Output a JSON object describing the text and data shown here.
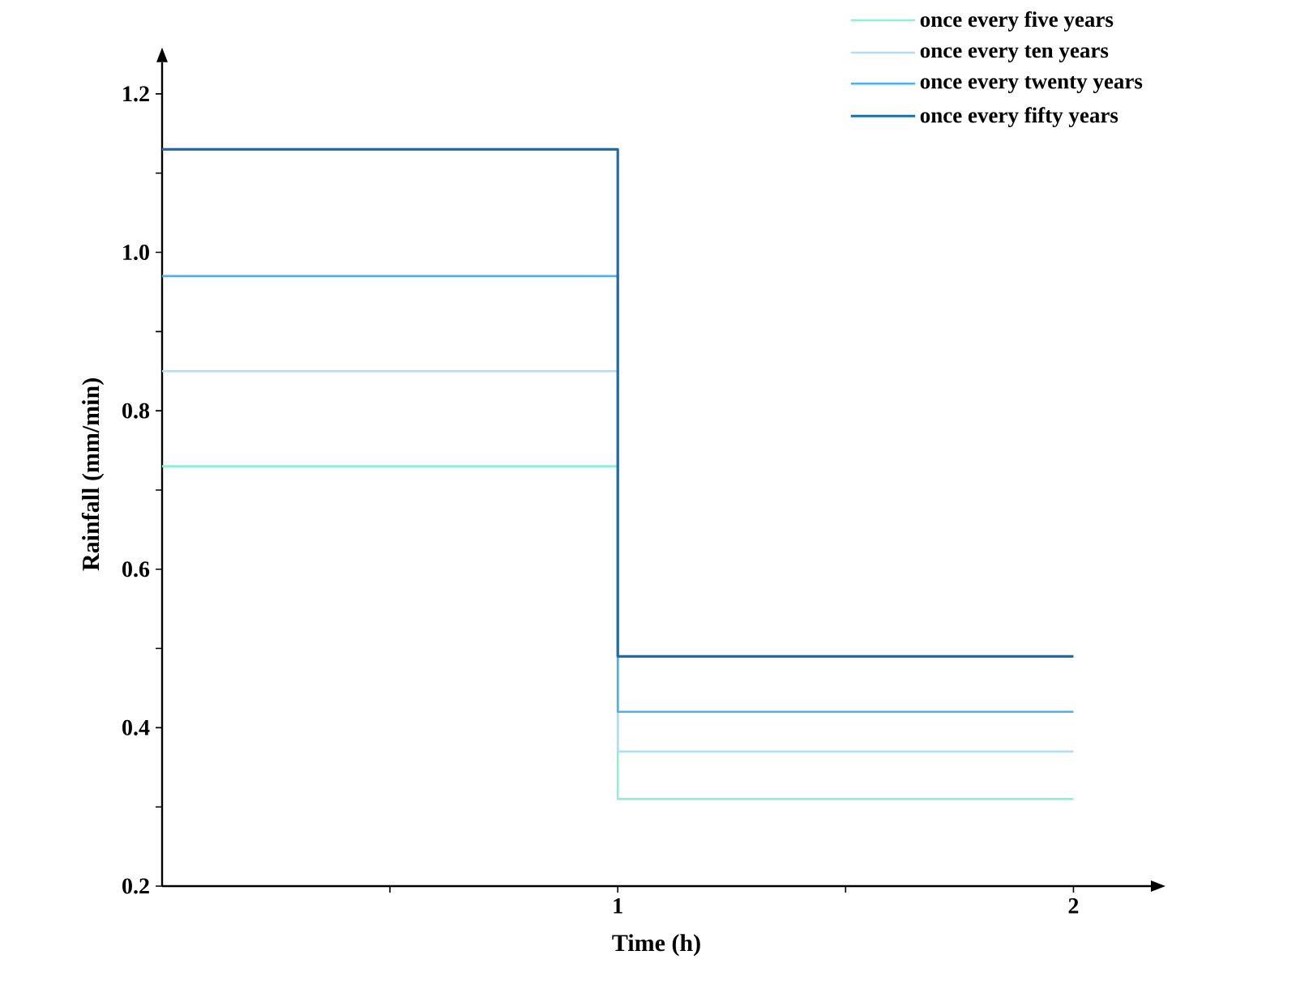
{
  "chart_data": {
    "type": "step",
    "xlabel": "Time (h)",
    "ylabel": "Rainfall (mm/min)",
    "x": [
      0,
      1,
      2
    ],
    "series": [
      {
        "name": "once every five years",
        "color": "#8cefd6",
        "values": [
          0.73,
          0.31,
          0.31
        ]
      },
      {
        "name": "once every ten years",
        "color": "#b0def6",
        "values": [
          0.85,
          0.37,
          0.37
        ]
      },
      {
        "name": "once every twenty years",
        "color": "#4cb2ea",
        "values": [
          0.97,
          0.42,
          0.42
        ]
      },
      {
        "name": "once every fifty years",
        "color": "#1a6eae",
        "values": [
          1.13,
          0.49,
          0.49
        ]
      }
    ],
    "xlim": [
      0,
      2.17
    ],
    "ylim": [
      0.2,
      1.24
    ],
    "xticks": [
      {
        "value": 0.5,
        "label": null
      },
      1,
      {
        "value": 1.5,
        "label": null
      },
      2
    ],
    "yticks": [
      0.2,
      {
        "value": 0.3,
        "label": null
      },
      0.4,
      {
        "value": 0.5,
        "label": null
      },
      0.6,
      {
        "value": 0.7,
        "label": null
      },
      0.8,
      {
        "value": 0.9,
        "label": null
      },
      {
        "value": 1.0,
        "label": "1.0"
      },
      {
        "value": 1.1,
        "label": null
      },
      1.2
    ],
    "legend": "top right",
    "marker": "none",
    "line_style": "solid"
  }
}
